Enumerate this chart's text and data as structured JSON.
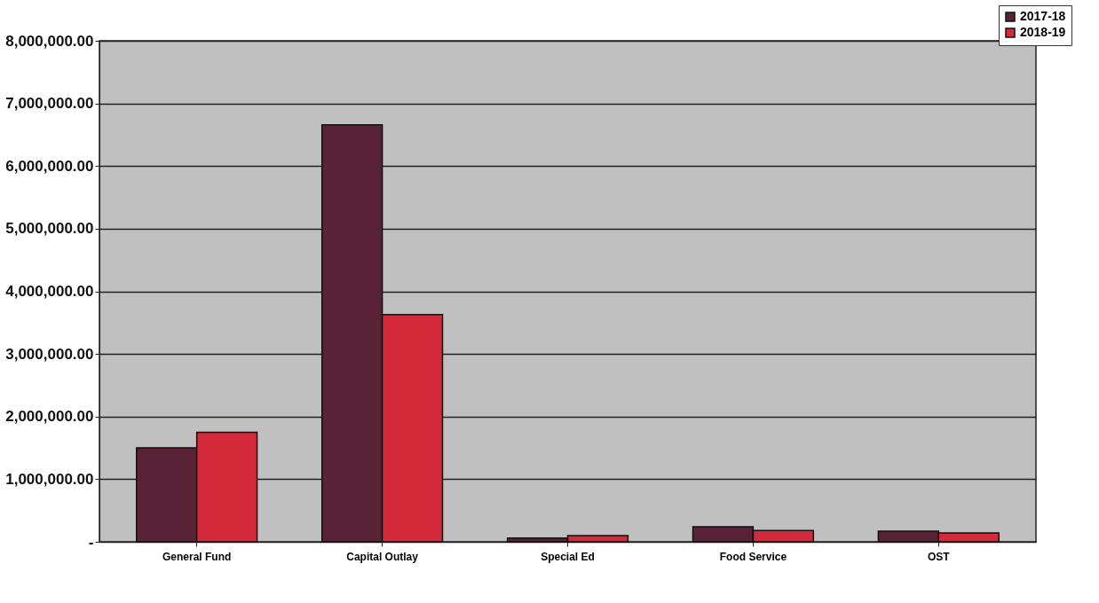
{
  "chart_data": {
    "type": "bar",
    "categories": [
      "General Fund",
      "Capital Outlay",
      "Special Ed",
      "Food Service",
      "OST"
    ],
    "series": [
      {
        "name": "2017-18",
        "color": "#5a2236",
        "values": [
          1500000,
          6660000,
          60000,
          240000,
          170000
        ]
      },
      {
        "name": "2018-19",
        "color": "#d42a3a",
        "values": [
          1750000,
          3630000,
          100000,
          180000,
          140000
        ]
      }
    ],
    "ylim": [
      0,
      8000000
    ],
    "yticks": [
      {
        "value": 0,
        "label": "-"
      },
      {
        "value": 1000000,
        "label": "1,000,000.00"
      },
      {
        "value": 2000000,
        "label": "2,000,000.00"
      },
      {
        "value": 3000000,
        "label": "3,000,000.00"
      },
      {
        "value": 4000000,
        "label": "4,000,000.00"
      },
      {
        "value": 5000000,
        "label": "5,000,000.00"
      },
      {
        "value": 6000000,
        "label": "6,000,000.00"
      },
      {
        "value": 7000000,
        "label": "7,000,000.00"
      },
      {
        "value": 8000000,
        "label": "8,000,000.00"
      }
    ],
    "grid": "y",
    "legend": "top right"
  }
}
